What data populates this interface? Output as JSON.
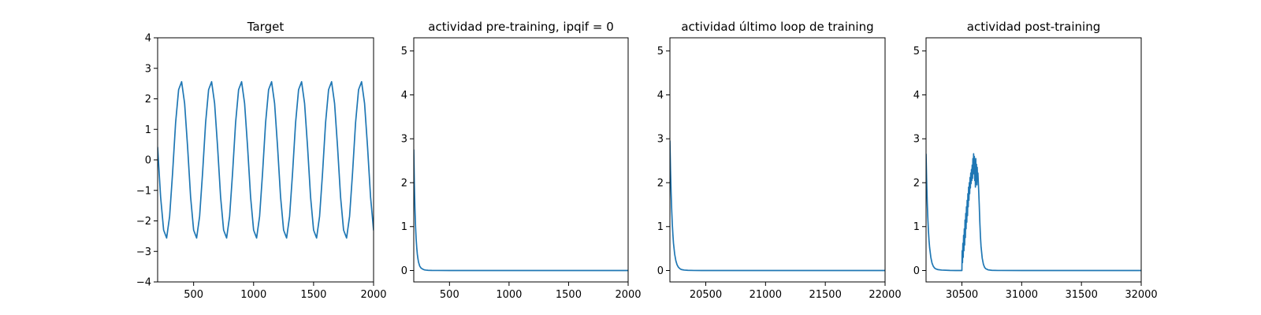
{
  "colors": {
    "series": "#1f77b4",
    "axes": "#000000",
    "background": "#ffffff"
  },
  "chart_data": [
    {
      "type": "line",
      "title": "Target",
      "xlabel": "",
      "ylabel": "",
      "xlim": [
        200,
        2000
      ],
      "ylim": [
        -4,
        4
      ],
      "xticks": [
        500,
        1000,
        1500,
        2000
      ],
      "yticks": [
        -4,
        -3,
        -2,
        -1,
        0,
        1,
        2,
        3,
        4
      ],
      "grid": false,
      "series": [
        {
          "x": [
            200,
            225,
            250,
            275,
            300,
            325,
            350,
            375,
            400,
            425,
            450,
            475,
            500,
            525,
            550,
            575,
            600,
            625,
            650,
            675,
            700,
            725,
            750,
            775,
            800,
            825,
            850,
            875,
            900,
            925,
            950,
            975,
            1000,
            1025,
            1050,
            1075,
            1100,
            1125,
            1150,
            1175,
            1200,
            1225,
            1250,
            1275,
            1300,
            1325,
            1350,
            1375,
            1400,
            1425,
            1450,
            1475,
            1500,
            1525,
            1550,
            1575,
            1600,
            1625,
            1650,
            1675,
            1700,
            1725,
            1750,
            1775,
            1800,
            1825,
            1850,
            1875,
            1900,
            1925,
            1950,
            1975,
            2000
          ],
          "y": [
            0.41,
            -1.22,
            -2.3,
            -2.56,
            -1.85,
            -0.41,
            1.22,
            2.3,
            2.56,
            1.85,
            0.41,
            -1.22,
            -2.3,
            -2.56,
            -1.85,
            -0.41,
            1.22,
            2.3,
            2.56,
            1.85,
            0.41,
            -1.22,
            -2.3,
            -2.56,
            -1.85,
            -0.41,
            1.22,
            2.3,
            2.56,
            1.85,
            0.41,
            -1.22,
            -2.3,
            -2.56,
            -1.85,
            -0.41,
            1.22,
            2.3,
            2.56,
            1.85,
            0.41,
            -1.22,
            -2.3,
            -2.56,
            -1.85,
            -0.41,
            1.22,
            2.3,
            2.56,
            1.85,
            0.41,
            -1.22,
            -2.3,
            -2.56,
            -1.85,
            -0.41,
            1.22,
            2.3,
            2.56,
            1.85,
            0.41,
            -1.22,
            -2.3,
            -2.56,
            -1.85,
            -0.41,
            1.22,
            2.3,
            2.56,
            1.85,
            0.41,
            -1.22,
            -2.3
          ]
        }
      ]
    },
    {
      "type": "line",
      "title": "actividad pre-training, ipqif = 0",
      "xlabel": "",
      "ylabel": "",
      "xlim": [
        200,
        2000
      ],
      "ylim": [
        -0.26,
        5.3
      ],
      "xticks": [
        500,
        1000,
        1500,
        2000
      ],
      "yticks": [
        0,
        1,
        2,
        3,
        4,
        5
      ],
      "grid": false,
      "series": [
        {
          "x": [
            200,
            205,
            210,
            215,
            220,
            225,
            230,
            235,
            240,
            250,
            260,
            270,
            280,
            290,
            300,
            320,
            350,
            400,
            500,
            700,
            1000,
            1500,
            2000
          ],
          "y": [
            2.75,
            1.95,
            1.4,
            1.0,
            0.72,
            0.52,
            0.37,
            0.27,
            0.19,
            0.1,
            0.06,
            0.04,
            0.025,
            0.015,
            0.01,
            0.005,
            0.002,
            0.001,
            0,
            0,
            0,
            0,
            0
          ]
        }
      ]
    },
    {
      "type": "line",
      "title": "actividad último loop de training",
      "xlabel": "",
      "ylabel": "",
      "xlim": [
        20200,
        22000
      ],
      "ylim": [
        -0.26,
        5.3
      ],
      "xticks": [
        20500,
        21000,
        21500,
        22000
      ],
      "yticks": [
        0,
        1,
        2,
        3,
        4,
        5
      ],
      "grid": false,
      "series": [
        {
          "x": [
            20200,
            20205,
            20210,
            20215,
            20220,
            20225,
            20230,
            20240,
            20250,
            20260,
            20270,
            20280,
            20290,
            20300,
            20320,
            20350,
            20400,
            20500,
            21000,
            21500,
            22000
          ],
          "y": [
            2.95,
            2.3,
            1.78,
            1.38,
            1.06,
            0.82,
            0.62,
            0.37,
            0.22,
            0.13,
            0.08,
            0.05,
            0.03,
            0.02,
            0.01,
            0.004,
            0.001,
            0,
            0,
            0,
            0
          ]
        }
      ]
    },
    {
      "type": "line",
      "title": "actividad post-training",
      "xlabel": "",
      "ylabel": "",
      "xlim": [
        30200,
        32000
      ],
      "ylim": [
        -0.26,
        5.3
      ],
      "xticks": [
        30500,
        31000,
        31500,
        32000
      ],
      "yticks": [
        0,
        1,
        2,
        3,
        4,
        5
      ],
      "grid": false,
      "series": [
        {
          "x": [
            30200,
            30205,
            30210,
            30215,
            30220,
            30225,
            30230,
            30240,
            30250,
            30260,
            30270,
            30280,
            30300,
            30330,
            30400,
            30450,
            30500,
            30502,
            30505,
            30508,
            30511,
            30514,
            30517,
            30520,
            30523,
            30526,
            30529,
            30532,
            30535,
            30538,
            30541,
            30544,
            30547,
            30550,
            30553,
            30556,
            30559,
            30562,
            30565,
            30568,
            30571,
            30574,
            30577,
            30580,
            30583,
            30586,
            30589,
            30592,
            30595,
            30598,
            30601,
            30604,
            30607,
            30610,
            30613,
            30616,
            30619,
            30622,
            30625,
            30628,
            30631,
            30634,
            30640,
            30645,
            30650,
            30655,
            30660,
            30670,
            30680,
            30690,
            30700,
            30720,
            30750,
            30800,
            31000,
            31500,
            32000
          ],
          "y": [
            2.65,
            2.05,
            1.55,
            1.18,
            0.9,
            0.68,
            0.52,
            0.3,
            0.17,
            0.1,
            0.06,
            0.04,
            0.02,
            0.01,
            0.002,
            0,
            0,
            0.45,
            0.18,
            0.62,
            0.3,
            0.8,
            0.45,
            0.95,
            0.58,
            1.15,
            0.75,
            1.3,
            0.95,
            1.45,
            1.1,
            1.6,
            1.25,
            1.75,
            1.45,
            1.9,
            1.6,
            2.0,
            1.75,
            2.12,
            1.88,
            2.22,
            1.98,
            2.3,
            2.05,
            2.4,
            2.1,
            2.55,
            2.2,
            2.66,
            2.25,
            2.6,
            2.05,
            2.48,
            1.9,
            2.55,
            2.02,
            2.42,
            1.95,
            2.35,
            2.05,
            2.22,
            1.85,
            1.5,
            1.1,
            0.78,
            0.55,
            0.28,
            0.14,
            0.07,
            0.04,
            0.015,
            0.005,
            0.001,
            0,
            0,
            0
          ]
        }
      ]
    }
  ]
}
